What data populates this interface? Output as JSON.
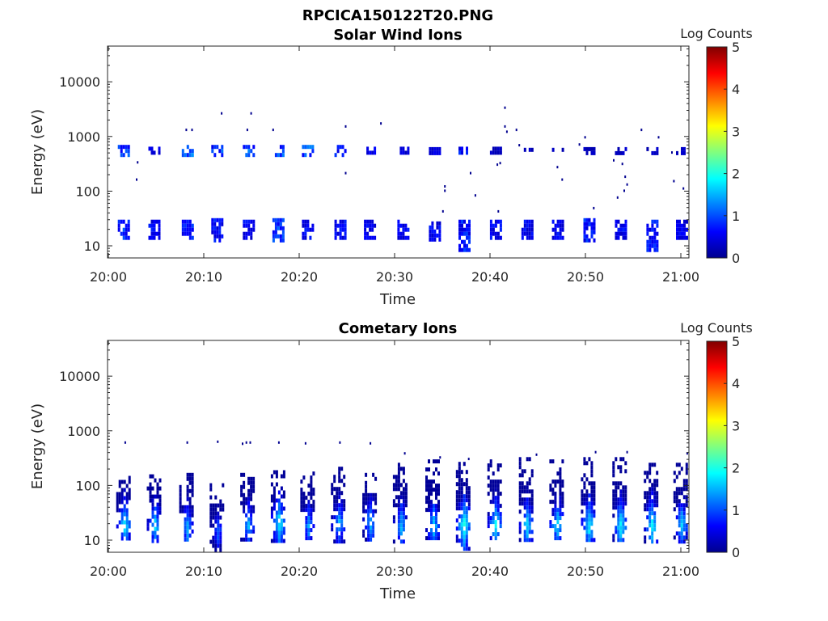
{
  "figure": {
    "filename": "RPCICA150122T20.PNG"
  },
  "chart_data": [
    {
      "type": "heatmap",
      "title": "Solar Wind Ions",
      "xlabel": "Time",
      "ylabel": "Energy (eV)",
      "yscale": "log",
      "ylim": [
        6,
        45000
      ],
      "xlim": [
        "20:00",
        "21:00"
      ],
      "xticks": [
        "20:00",
        "20:10",
        "20:20",
        "20:30",
        "20:40",
        "20:50",
        "21:00"
      ],
      "yticks": [
        10,
        100,
        1000,
        10000
      ],
      "ytick_labels": [
        "10",
        "100",
        "1000",
        "10000"
      ],
      "colorbar": {
        "label": "Log Counts",
        "range": [
          0,
          5
        ],
        "ticks": [
          "0",
          "1",
          "2",
          "3",
          "4",
          "5"
        ],
        "colormap": "jet"
      },
      "grid": false,
      "bursts": [
        {
          "t": 1.5,
          "low": [
            13,
            30
          ],
          "high": [
            480,
            700
          ],
          "low_peak": 1.2,
          "high_peak": 1.3
        },
        {
          "t": 4.7,
          "low": [
            13,
            30
          ],
          "high": [
            500,
            650
          ],
          "low_peak": 0.8,
          "high_peak": 0.8
        },
        {
          "t": 8.2,
          "low": [
            13,
            30
          ],
          "high": [
            480,
            700
          ],
          "low_peak": 1.0,
          "high_peak": 1.4
        },
        {
          "t": 11.3,
          "low": [
            13,
            32
          ],
          "high": [
            480,
            700
          ],
          "low_peak": 0.9,
          "high_peak": 1.2
        },
        {
          "t": 14.6,
          "low": [
            13,
            30
          ],
          "high": [
            480,
            700
          ],
          "low_peak": 0.8,
          "high_peak": 1.4
        },
        {
          "t": 17.7,
          "low": [
            13,
            32
          ],
          "high": [
            480,
            700
          ],
          "low_peak": 1.2,
          "high_peak": 1.3
        },
        {
          "t": 20.8,
          "low": [
            13,
            30
          ],
          "high": [
            480,
            700
          ],
          "low_peak": 0.8,
          "high_peak": 1.3
        },
        {
          "t": 24.2,
          "low": [
            13,
            30
          ],
          "high": [
            450,
            700
          ],
          "low_peak": 0.8,
          "high_peak": 1.0
        },
        {
          "t": 27.3,
          "low": [
            13,
            30
          ],
          "high": [
            480,
            650
          ],
          "low_peak": 0.8,
          "high_peak": 0.7
        },
        {
          "t": 30.8,
          "low": [
            13,
            30
          ],
          "high": [
            500,
            650
          ],
          "low_peak": 0.8,
          "high_peak": 0.5
        },
        {
          "t": 34.1,
          "low": [
            13,
            28
          ],
          "high": [
            520,
            640
          ],
          "low_peak": 0.8,
          "high_peak": 0.6
        },
        {
          "t": 37.2,
          "low": [
            9,
            30
          ],
          "high": [
            500,
            650
          ],
          "low_peak": 1.0,
          "high_peak": 0.9
        },
        {
          "t": 40.5,
          "low": [
            13,
            30
          ],
          "high": [
            500,
            650
          ],
          "low_peak": 0.8,
          "high_peak": 0.5
        },
        {
          "t": 43.8,
          "low": [
            13,
            30
          ],
          "high": [
            550,
            620
          ],
          "low_peak": 0.8,
          "high_peak": 0.4
        },
        {
          "t": 47.0,
          "low": [
            13,
            30
          ],
          "high": [
            550,
            620
          ],
          "low_peak": 0.8,
          "high_peak": 0.4
        },
        {
          "t": 50.3,
          "low": [
            13,
            32
          ],
          "high": [
            520,
            640
          ],
          "low_peak": 1.0,
          "high_peak": 0.4
        },
        {
          "t": 53.6,
          "low": [
            13,
            30
          ],
          "high": [
            520,
            640
          ],
          "low_peak": 0.8,
          "high_peak": 0.4
        },
        {
          "t": 56.9,
          "low": [
            9,
            30
          ],
          "high": [
            520,
            640
          ],
          "low_peak": 0.9,
          "high_peak": 0.4
        },
        {
          "t": 60.0,
          "low": [
            13,
            30
          ],
          "high": [
            520,
            640
          ],
          "low_peak": 0.7,
          "high_peak": 0.4
        }
      ],
      "scatter": [
        {
          "t": 2.9,
          "e": 330
        },
        {
          "t": 2.8,
          "e": 160
        },
        {
          "t": 11.7,
          "e": 2600
        },
        {
          "t": 14.8,
          "e": 2600
        },
        {
          "t": 14.4,
          "e": 1300
        },
        {
          "t": 17.1,
          "e": 1300
        },
        {
          "t": 8.0,
          "e": 1300
        },
        {
          "t": 8.6,
          "e": 1300
        },
        {
          "t": 24.7,
          "e": 1500
        },
        {
          "t": 24.7,
          "e": 210
        },
        {
          "t": 28.4,
          "e": 1700
        },
        {
          "t": 35.1,
          "e": 120
        },
        {
          "t": 35.1,
          "e": 100
        },
        {
          "t": 34.9,
          "e": 42
        },
        {
          "t": 37.8,
          "e": 210
        },
        {
          "t": 38.3,
          "e": 82
        },
        {
          "t": 40.6,
          "e": 300
        },
        {
          "t": 40.9,
          "e": 320
        },
        {
          "t": 41.4,
          "e": 3300
        },
        {
          "t": 41.4,
          "e": 1500
        },
        {
          "t": 41.6,
          "e": 1200
        },
        {
          "t": 42.6,
          "e": 1300
        },
        {
          "t": 42.9,
          "e": 680
        },
        {
          "t": 40.7,
          "e": 42
        },
        {
          "t": 46.9,
          "e": 270
        },
        {
          "t": 47.4,
          "e": 160
        },
        {
          "t": 49.8,
          "e": 950
        },
        {
          "t": 50.7,
          "e": 48
        },
        {
          "t": 52.8,
          "e": 360
        },
        {
          "t": 53.2,
          "e": 75
        },
        {
          "t": 53.7,
          "e": 310
        },
        {
          "t": 54.0,
          "e": 180
        },
        {
          "t": 54.2,
          "e": 130
        },
        {
          "t": 53.9,
          "e": 100
        },
        {
          "t": 55.7,
          "e": 1300
        },
        {
          "t": 57.5,
          "e": 950
        },
        {
          "t": 58.9,
          "e": 500
        },
        {
          "t": 59.1,
          "e": 150
        },
        {
          "t": 60.1,
          "e": 110
        },
        {
          "t": 49.2,
          "e": 700
        }
      ]
    },
    {
      "type": "heatmap",
      "title": "Cometary Ions",
      "xlabel": "Time",
      "ylabel": "Energy (eV)",
      "yscale": "log",
      "ylim": [
        6,
        45000
      ],
      "xlim": [
        "20:00",
        "21:00"
      ],
      "xticks": [
        "20:00",
        "20:10",
        "20:20",
        "20:30",
        "20:40",
        "20:50",
        "21:00"
      ],
      "yticks": [
        10,
        100,
        1000,
        10000
      ],
      "ytick_labels": [
        "10",
        "100",
        "1000",
        "10000"
      ],
      "colorbar": {
        "label": "Log Counts",
        "range": [
          0,
          5
        ],
        "ticks": [
          "0",
          "1",
          "2",
          "3",
          "4",
          "5"
        ],
        "colormap": "jet"
      },
      "grid": false,
      "bursts": [
        {
          "t": 1.5,
          "low": [
            10,
            150
          ],
          "peak": 1.8,
          "peak_e": 20
        },
        {
          "t": 4.7,
          "low": [
            10,
            160
          ],
          "peak": 1.7,
          "peak_e": 20
        },
        {
          "t": 8.1,
          "low": [
            10,
            170
          ],
          "peak": 1.6,
          "peak_e": 18
        },
        {
          "t": 11.3,
          "low": [
            7,
            110
          ],
          "peak": 1.2,
          "peak_e": 16
        },
        {
          "t": 14.5,
          "low": [
            10,
            170
          ],
          "peak": 1.5,
          "peak_e": 20
        },
        {
          "t": 17.7,
          "low": [
            10,
            190
          ],
          "peak": 1.9,
          "peak_e": 22
        },
        {
          "t": 20.8,
          "low": [
            10,
            180
          ],
          "peak": 1.5,
          "peak_e": 20
        },
        {
          "t": 24.0,
          "low": [
            10,
            220
          ],
          "peak": 1.6,
          "peak_e": 22
        },
        {
          "t": 27.3,
          "low": [
            10,
            170
          ],
          "peak": 1.6,
          "peak_e": 22
        },
        {
          "t": 30.5,
          "low": [
            10,
            260
          ],
          "peak": 1.6,
          "peak_e": 20
        },
        {
          "t": 33.9,
          "low": [
            10,
            300
          ],
          "peak": 1.7,
          "peak_e": 20
        },
        {
          "t": 37.1,
          "low": [
            7,
            320
          ],
          "peak": 2.0,
          "peak_e": 20
        },
        {
          "t": 40.4,
          "low": [
            10,
            300
          ],
          "peak": 1.9,
          "peak_e": 20
        },
        {
          "t": 43.7,
          "low": [
            10,
            330
          ],
          "peak": 1.8,
          "peak_e": 20
        },
        {
          "t": 46.9,
          "low": [
            10,
            300
          ],
          "peak": 1.8,
          "peak_e": 20
        },
        {
          "t": 50.2,
          "low": [
            10,
            330
          ],
          "peak": 1.9,
          "peak_e": 20
        },
        {
          "t": 53.5,
          "low": [
            10,
            330
          ],
          "peak": 1.9,
          "peak_e": 20
        },
        {
          "t": 56.8,
          "low": [
            10,
            260
          ],
          "peak": 1.9,
          "peak_e": 20
        },
        {
          "t": 59.9,
          "low": [
            10,
            260
          ],
          "peak": 1.7,
          "peak_e": 20
        }
      ],
      "scatter": [
        {
          "t": 1.6,
          "e": 600
        },
        {
          "t": 8.1,
          "e": 600
        },
        {
          "t": 11.3,
          "e": 620
        },
        {
          "t": 13.9,
          "e": 570
        },
        {
          "t": 14.3,
          "e": 600
        },
        {
          "t": 14.7,
          "e": 600
        },
        {
          "t": 17.7,
          "e": 600
        },
        {
          "t": 20.5,
          "e": 580
        },
        {
          "t": 24.1,
          "e": 600
        },
        {
          "t": 27.3,
          "e": 580
        },
        {
          "t": 30.9,
          "e": 380
        },
        {
          "t": 34.6,
          "e": 320
        },
        {
          "t": 37.6,
          "e": 300
        },
        {
          "t": 44.7,
          "e": 360
        },
        {
          "t": 50.9,
          "e": 400
        },
        {
          "t": 54.2,
          "e": 400
        },
        {
          "t": 60.5,
          "e": 380
        }
      ]
    }
  ]
}
